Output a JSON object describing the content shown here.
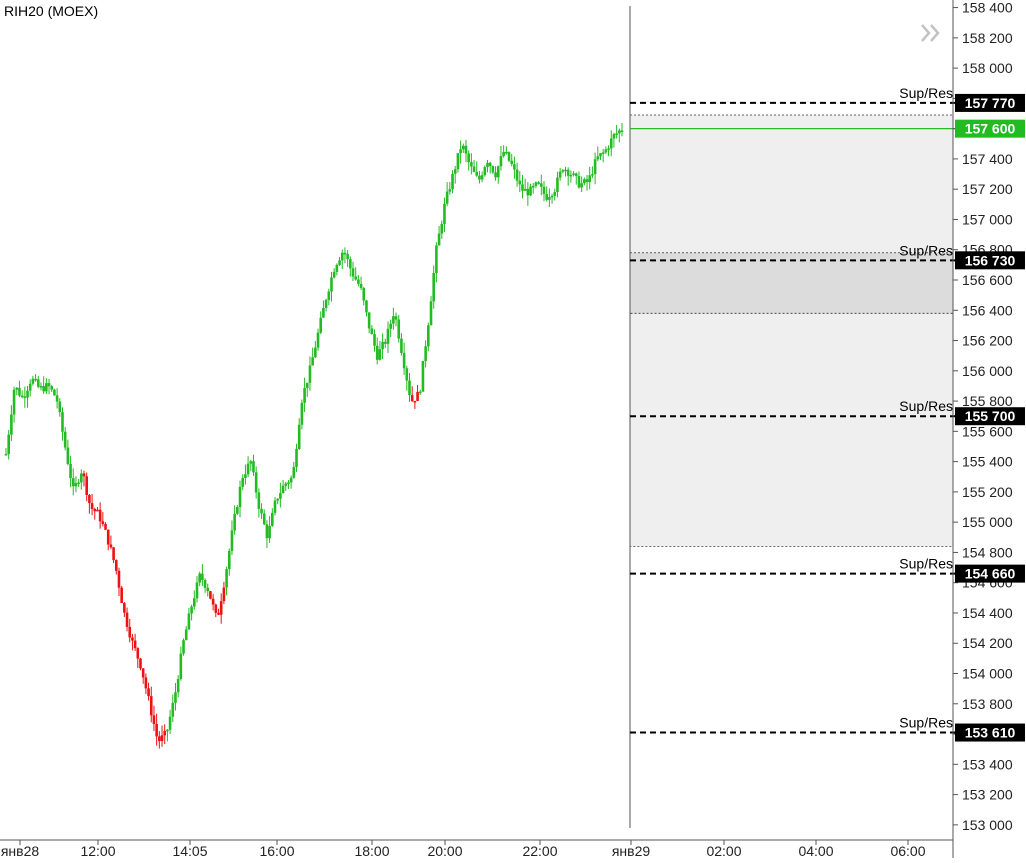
{
  "chart_data": {
    "type": "candlestick",
    "title": "RIH20 (MOEX)",
    "ylim": [
      152900,
      158450
    ],
    "y_ticks": [
      "153 000",
      "153 200",
      "153 400",
      "153 600",
      "153 800",
      "154 000",
      "154 200",
      "154 400",
      "154 600",
      "154 800",
      "155 000",
      "155 200",
      "155 400",
      "155 600",
      "155 800",
      "156 000",
      "156 200",
      "156 400",
      "156 600",
      "156 800",
      "157 000",
      "157 200",
      "157 400",
      "157 600",
      "157 800",
      "158 000",
      "158 200",
      "158 400"
    ],
    "x_ticks": [
      "янв28",
      "12:00",
      "14:05",
      "16:00",
      "18:00",
      "20:00",
      "22:00",
      "янв29",
      "02:00",
      "04:00",
      "06:00"
    ],
    "last_price": {
      "label": "157 600",
      "value": 157600
    },
    "levels": [
      {
        "label": "Sup/Res",
        "price_label": "157 770",
        "value": 157770
      },
      {
        "label": "Sup/Res",
        "price_label": "156 730",
        "value": 156730
      },
      {
        "label": "Sup/Res",
        "price_label": "155 700",
        "value": 155700
      },
      {
        "label": "Sup/Res",
        "price_label": "154 660",
        "value": 154660
      },
      {
        "label": "Sup/Res",
        "price_label": "153 610",
        "value": 153610
      }
    ],
    "zones": [
      {
        "from": 154840,
        "to": 157690,
        "shade": "light"
      },
      {
        "from": 156380,
        "to": 156780,
        "shade": "dark"
      }
    ],
    "price_path": [
      {
        "p": 155450,
        "c": "up"
      },
      {
        "p": 155900,
        "c": "up"
      },
      {
        "p": 155820,
        "c": "up"
      },
      {
        "p": 155950,
        "c": "up"
      },
      {
        "p": 155880,
        "c": "up"
      },
      {
        "p": 155900,
        "c": "up"
      },
      {
        "p": 155820,
        "c": "up"
      },
      {
        "p": 155500,
        "c": "up"
      },
      {
        "p": 155200,
        "c": "up"
      },
      {
        "p": 155350,
        "c": "down"
      },
      {
        "p": 155100,
        "c": "down"
      },
      {
        "p": 155050,
        "c": "down"
      },
      {
        "p": 154900,
        "c": "down"
      },
      {
        "p": 154700,
        "c": "down"
      },
      {
        "p": 154400,
        "c": "down"
      },
      {
        "p": 154200,
        "c": "down"
      },
      {
        "p": 154050,
        "c": "down"
      },
      {
        "p": 153800,
        "c": "down"
      },
      {
        "p": 153550,
        "c": "down"
      },
      {
        "p": 153600,
        "c": "up"
      },
      {
        "p": 153850,
        "c": "up"
      },
      {
        "p": 154200,
        "c": "up"
      },
      {
        "p": 154450,
        "c": "up"
      },
      {
        "p": 154650,
        "c": "up"
      },
      {
        "p": 154550,
        "c": "down"
      },
      {
        "p": 154350,
        "c": "down"
      },
      {
        "p": 154650,
        "c": "up"
      },
      {
        "p": 155000,
        "c": "up"
      },
      {
        "p": 155300,
        "c": "up"
      },
      {
        "p": 155400,
        "c": "up"
      },
      {
        "p": 155100,
        "c": "up"
      },
      {
        "p": 154900,
        "c": "up"
      },
      {
        "p": 155150,
        "c": "up"
      },
      {
        "p": 155250,
        "c": "up"
      },
      {
        "p": 155300,
        "c": "up"
      },
      {
        "p": 155800,
        "c": "up"
      },
      {
        "p": 156000,
        "c": "up"
      },
      {
        "p": 156250,
        "c": "up"
      },
      {
        "p": 156500,
        "c": "up"
      },
      {
        "p": 156700,
        "c": "up"
      },
      {
        "p": 156800,
        "c": "up"
      },
      {
        "p": 156650,
        "c": "up"
      },
      {
        "p": 156550,
        "c": "up"
      },
      {
        "p": 156300,
        "c": "up"
      },
      {
        "p": 156100,
        "c": "up"
      },
      {
        "p": 156200,
        "c": "up"
      },
      {
        "p": 156400,
        "c": "up"
      },
      {
        "p": 156100,
        "c": "up"
      },
      {
        "p": 155800,
        "c": "down"
      },
      {
        "p": 155850,
        "c": "up"
      },
      {
        "p": 156300,
        "c": "up"
      },
      {
        "p": 156800,
        "c": "up"
      },
      {
        "p": 157100,
        "c": "up"
      },
      {
        "p": 157300,
        "c": "up"
      },
      {
        "p": 157500,
        "c": "up"
      },
      {
        "p": 157350,
        "c": "up"
      },
      {
        "p": 157250,
        "c": "up"
      },
      {
        "p": 157400,
        "c": "up"
      },
      {
        "p": 157300,
        "c": "up"
      },
      {
        "p": 157450,
        "c": "up"
      },
      {
        "p": 157350,
        "c": "up"
      },
      {
        "p": 157200,
        "c": "up"
      },
      {
        "p": 157180,
        "c": "up"
      },
      {
        "p": 157230,
        "c": "up"
      },
      {
        "p": 157150,
        "c": "up"
      },
      {
        "p": 157200,
        "c": "up"
      },
      {
        "p": 157350,
        "c": "up"
      },
      {
        "p": 157300,
        "c": "up"
      },
      {
        "p": 157230,
        "c": "up"
      },
      {
        "p": 157250,
        "c": "up"
      },
      {
        "p": 157400,
        "c": "up"
      },
      {
        "p": 157450,
        "c": "up"
      },
      {
        "p": 157550,
        "c": "up"
      },
      {
        "p": 157600,
        "c": "up"
      }
    ]
  },
  "colors": {
    "up": "#22bb22",
    "down": "#ee1111",
    "last_price": "#22bb22",
    "level_badge": "#000000",
    "zone_light": "#efefef",
    "zone_dark": "#dcdcdc",
    "axis": "#555555"
  },
  "nav_icon": "double-chevron-right-icon"
}
